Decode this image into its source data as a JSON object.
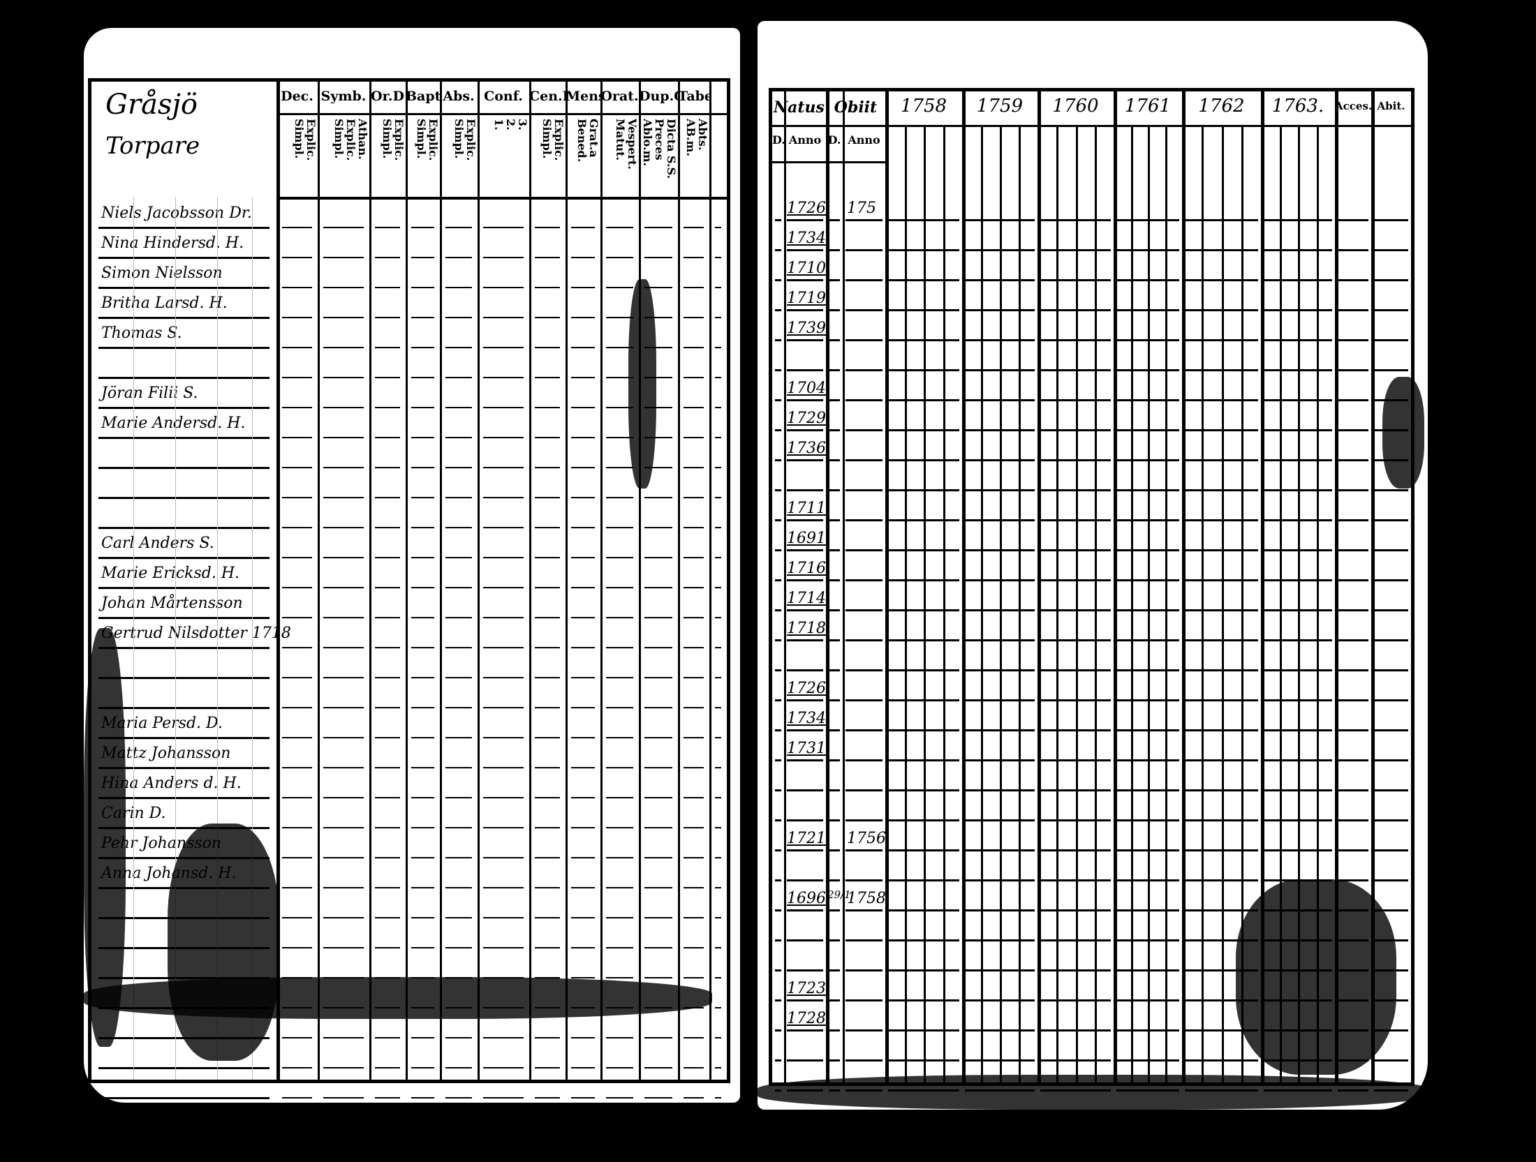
{
  "left_page": {
    "heading_lines": [
      "Gråsjö",
      "Torpare"
    ],
    "columns": [
      {
        "header": "Dec.",
        "sub": [
          "Explic.",
          "Simpl."
        ]
      },
      {
        "header": "Symb.",
        "sub": [
          "Athan.",
          "Explic.",
          "Simpl."
        ]
      },
      {
        "header": "Or.D",
        "sub": [
          "Explic.",
          "Simpl."
        ]
      },
      {
        "header": "Bapt.",
        "sub": [
          "Explic.",
          "Simpl."
        ]
      },
      {
        "header": "Abs.",
        "sub": [
          "Explic.",
          "Simpl."
        ]
      },
      {
        "header": "Conf.",
        "sub": [
          "3.",
          "2.",
          "1."
        ]
      },
      {
        "header": "Cen.D",
        "sub": [
          "Explic.",
          "Simpl."
        ]
      },
      {
        "header": "Mens.",
        "sub": [
          "Grat.a",
          "Bened."
        ]
      },
      {
        "header": "Orat.",
        "sub": [
          "Vespert.",
          "Matut."
        ]
      },
      {
        "header": "Dup.Q",
        "sub": [
          "Dicta S.S.",
          "Preces",
          "Ablo.m."
        ]
      },
      {
        "header": "Tabel",
        "sub": [
          "Abts.",
          "AB.m."
        ]
      },
      {
        "header": "",
        "sub": []
      }
    ],
    "names": [
      "Niels Jacobsson Dr.",
      "Nina Hindersd. H.",
      "Simon Nielsson",
      "Britha Larsd. H.",
      "Thomas S.",
      "",
      "Jöran Filii S.",
      "Marie Andersd. H.",
      "",
      "",
      "",
      "Carl Anders S.",
      "Marie Ericksd. H.",
      "Johan Mårtensson",
      "Gertrud Nilsdotter 1718",
      "",
      "",
      "Maria Persd. D.",
      "Mattz Johansson",
      "Hina Anders d. H.",
      "Carin D.",
      "Pehr Johansson",
      "Anna Johansd. H.",
      "",
      "",
      "",
      "",
      "",
      "",
      ""
    ],
    "side_note": "1718"
  },
  "right_page": {
    "columns": {
      "natus": "Natus",
      "obiit": "Obiit",
      "d": "D.",
      "anno": "Anno",
      "years": [
        "1758",
        "1759",
        "1760",
        "1761",
        "1762",
        "1763."
      ],
      "accessit": "Acces.",
      "abiit": "Abit."
    },
    "birth_years": [
      "1726",
      "1734",
      "1710",
      "1719",
      "1739",
      "",
      "1704",
      "1729",
      "1736",
      "",
      "1711",
      "1691",
      "1716",
      "1714",
      "1718",
      "",
      "1726",
      "1734",
      "1731",
      "",
      "",
      "1721",
      "",
      "1696",
      "",
      "",
      "1723",
      "1728",
      "",
      ""
    ],
    "death_day": [
      "",
      "",
      "",
      "",
      "",
      "",
      "",
      "",
      "",
      "",
      "",
      "",
      "",
      "",
      "",
      "",
      "",
      "",
      "",
      "",
      "",
      "",
      "",
      "29/1",
      "",
      "",
      "",
      "",
      "",
      ""
    ],
    "death_years": [
      "175",
      "",
      "",
      "",
      "",
      "",
      "",
      "",
      "",
      "",
      "",
      "",
      "",
      "",
      "",
      "",
      "",
      "",
      "",
      "",
      "",
      "1756",
      "",
      "1758",
      "",
      "",
      "",
      "",
      "",
      ""
    ]
  }
}
